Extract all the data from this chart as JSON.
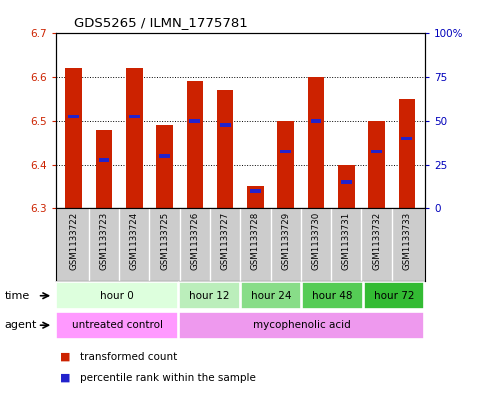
{
  "title": "GDS5265 / ILMN_1775781",
  "samples": [
    "GSM1133722",
    "GSM1133723",
    "GSM1133724",
    "GSM1133725",
    "GSM1133726",
    "GSM1133727",
    "GSM1133728",
    "GSM1133729",
    "GSM1133730",
    "GSM1133731",
    "GSM1133732",
    "GSM1133733"
  ],
  "bar_bottoms": [
    6.3,
    6.3,
    6.3,
    6.3,
    6.3,
    6.3,
    6.3,
    6.3,
    6.3,
    6.3,
    6.3,
    6.3
  ],
  "bar_tops": [
    6.62,
    6.48,
    6.62,
    6.49,
    6.59,
    6.57,
    6.35,
    6.5,
    6.6,
    6.4,
    6.5,
    6.55
  ],
  "percentile_vals": [
    6.51,
    6.41,
    6.51,
    6.42,
    6.5,
    6.49,
    6.34,
    6.43,
    6.5,
    6.36,
    6.43,
    6.46
  ],
  "ylim_left": [
    6.3,
    6.7
  ],
  "ylim_right": [
    0,
    100
  ],
  "yticks_left": [
    6.3,
    6.4,
    6.5,
    6.6,
    6.7
  ],
  "yticks_right": [
    0,
    25,
    50,
    75,
    100
  ],
  "ytick_right_labels": [
    "0",
    "25",
    "50",
    "75",
    "100%"
  ],
  "bar_color": "#cc2200",
  "percentile_color": "#2222cc",
  "time_groups": [
    {
      "label": "hour 0",
      "start": 0,
      "end": 4,
      "color": "#ddffdd"
    },
    {
      "label": "hour 12",
      "start": 4,
      "end": 6,
      "color": "#bbeebb"
    },
    {
      "label": "hour 24",
      "start": 6,
      "end": 8,
      "color": "#88dd88"
    },
    {
      "label": "hour 48",
      "start": 8,
      "end": 10,
      "color": "#55cc55"
    },
    {
      "label": "hour 72",
      "start": 10,
      "end": 12,
      "color": "#33bb33"
    }
  ],
  "agent_groups": [
    {
      "label": "untreated control",
      "start": 0,
      "end": 4,
      "color": "#ff99ff"
    },
    {
      "label": "mycophenolic acid",
      "start": 4,
      "end": 12,
      "color": "#ee99ee"
    }
  ],
  "time_label": "time",
  "agent_label": "agent",
  "legend_red": "transformed count",
  "legend_blue": "percentile rank within the sample",
  "bg_color": "#ffffff",
  "plot_bg": "#ffffff",
  "sample_bg": "#cccccc",
  "axis_color_left": "#cc2200",
  "axis_color_right": "#0000bb",
  "border_color": "#000000"
}
